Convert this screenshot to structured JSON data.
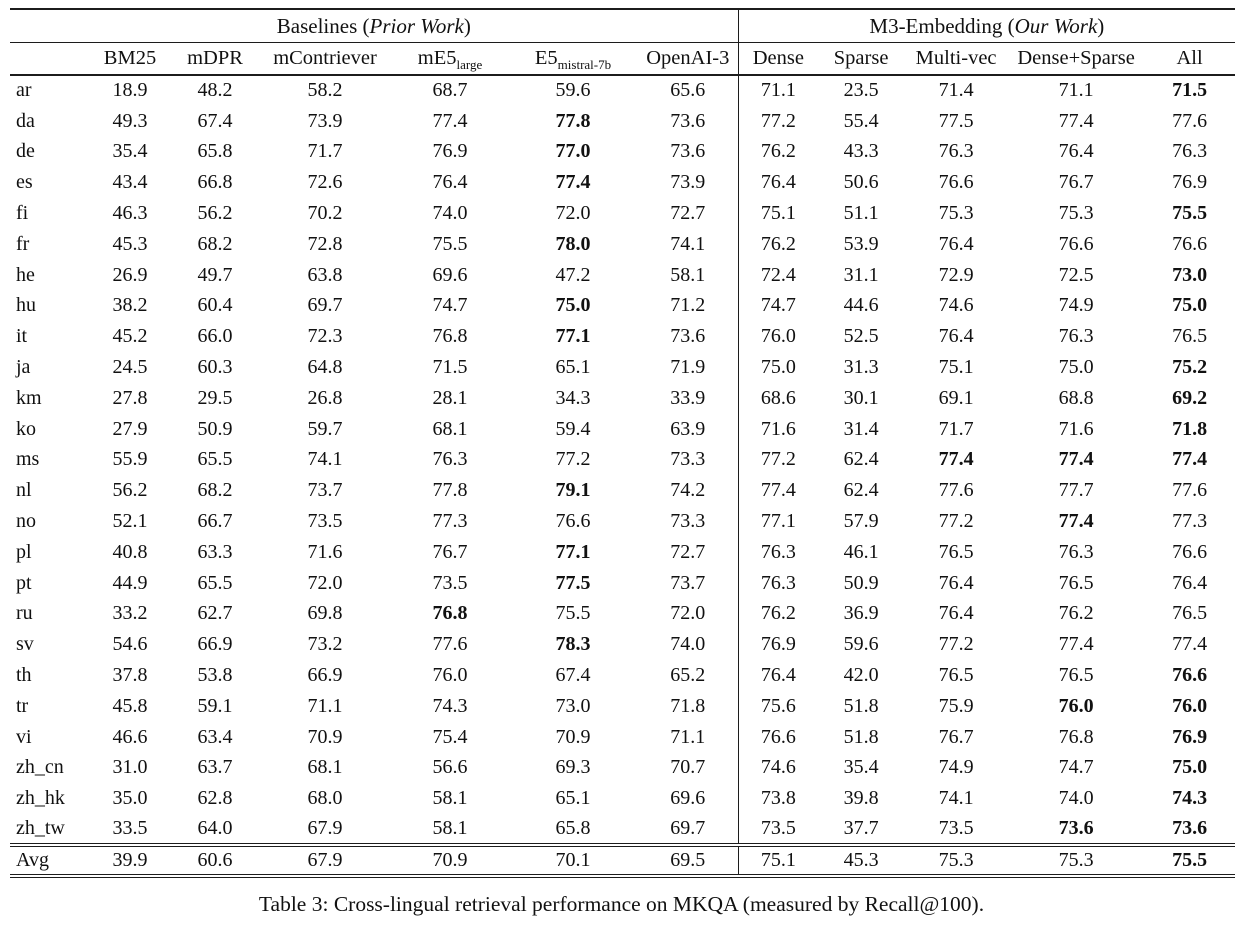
{
  "caption": "Table 3: Cross-lingual retrieval performance on MKQA (measured by Recall@100).",
  "table": {
    "groups": [
      {
        "title_prefix": "Baselines (",
        "title_italic": "Prior Work",
        "title_suffix": ")"
      },
      {
        "title_prefix": "M3-Embedding (",
        "title_italic": "Our Work",
        "title_suffix": ")"
      }
    ],
    "columns": [
      {
        "label": "BM25"
      },
      {
        "label": "mDPR"
      },
      {
        "label": "mContriever"
      },
      {
        "label": "mE5",
        "sub": "large"
      },
      {
        "label": "E5",
        "sub": "mistral-7b"
      },
      {
        "label": "OpenAI-3"
      },
      {
        "label": "Dense"
      },
      {
        "label": "Sparse"
      },
      {
        "label": "Multi-vec"
      },
      {
        "label": "Dense+Sparse"
      },
      {
        "label": "All"
      }
    ],
    "rows": [
      {
        "lang": "ar",
        "values": [
          "18.9",
          "48.2",
          "58.2",
          "68.7",
          "59.6",
          "65.6",
          "71.1",
          "23.5",
          "71.4",
          "71.1",
          "71.5"
        ],
        "bold": [
          10
        ]
      },
      {
        "lang": "da",
        "values": [
          "49.3",
          "67.4",
          "73.9",
          "77.4",
          "77.8",
          "73.6",
          "77.2",
          "55.4",
          "77.5",
          "77.4",
          "77.6"
        ],
        "bold": [
          4
        ]
      },
      {
        "lang": "de",
        "values": [
          "35.4",
          "65.8",
          "71.7",
          "76.9",
          "77.0",
          "73.6",
          "76.2",
          "43.3",
          "76.3",
          "76.4",
          "76.3"
        ],
        "bold": [
          4
        ]
      },
      {
        "lang": "es",
        "values": [
          "43.4",
          "66.8",
          "72.6",
          "76.4",
          "77.4",
          "73.9",
          "76.4",
          "50.6",
          "76.6",
          "76.7",
          "76.9"
        ],
        "bold": [
          4
        ]
      },
      {
        "lang": "fi",
        "values": [
          "46.3",
          "56.2",
          "70.2",
          "74.0",
          "72.0",
          "72.7",
          "75.1",
          "51.1",
          "75.3",
          "75.3",
          "75.5"
        ],
        "bold": [
          10
        ]
      },
      {
        "lang": "fr",
        "values": [
          "45.3",
          "68.2",
          "72.8",
          "75.5",
          "78.0",
          "74.1",
          "76.2",
          "53.9",
          "76.4",
          "76.6",
          "76.6"
        ],
        "bold": [
          4
        ]
      },
      {
        "lang": "he",
        "values": [
          "26.9",
          "49.7",
          "63.8",
          "69.6",
          "47.2",
          "58.1",
          "72.4",
          "31.1",
          "72.9",
          "72.5",
          "73.0"
        ],
        "bold": [
          10
        ]
      },
      {
        "lang": "hu",
        "values": [
          "38.2",
          "60.4",
          "69.7",
          "74.7",
          "75.0",
          "71.2",
          "74.7",
          "44.6",
          "74.6",
          "74.9",
          "75.0"
        ],
        "bold": [
          4,
          10
        ]
      },
      {
        "lang": "it",
        "values": [
          "45.2",
          "66.0",
          "72.3",
          "76.8",
          "77.1",
          "73.6",
          "76.0",
          "52.5",
          "76.4",
          "76.3",
          "76.5"
        ],
        "bold": [
          4
        ]
      },
      {
        "lang": "ja",
        "values": [
          "24.5",
          "60.3",
          "64.8",
          "71.5",
          "65.1",
          "71.9",
          "75.0",
          "31.3",
          "75.1",
          "75.0",
          "75.2"
        ],
        "bold": [
          10
        ]
      },
      {
        "lang": "km",
        "values": [
          "27.8",
          "29.5",
          "26.8",
          "28.1",
          "34.3",
          "33.9",
          "68.6",
          "30.1",
          "69.1",
          "68.8",
          "69.2"
        ],
        "bold": [
          10
        ]
      },
      {
        "lang": "ko",
        "values": [
          "27.9",
          "50.9",
          "59.7",
          "68.1",
          "59.4",
          "63.9",
          "71.6",
          "31.4",
          "71.7",
          "71.6",
          "71.8"
        ],
        "bold": [
          10
        ]
      },
      {
        "lang": "ms",
        "values": [
          "55.9",
          "65.5",
          "74.1",
          "76.3",
          "77.2",
          "73.3",
          "77.2",
          "62.4",
          "77.4",
          "77.4",
          "77.4"
        ],
        "bold": [
          8,
          9,
          10
        ]
      },
      {
        "lang": "nl",
        "values": [
          "56.2",
          "68.2",
          "73.7",
          "77.8",
          "79.1",
          "74.2",
          "77.4",
          "62.4",
          "77.6",
          "77.7",
          "77.6"
        ],
        "bold": [
          4
        ]
      },
      {
        "lang": "no",
        "values": [
          "52.1",
          "66.7",
          "73.5",
          "77.3",
          "76.6",
          "73.3",
          "77.1",
          "57.9",
          "77.2",
          "77.4",
          "77.3"
        ],
        "bold": [
          9
        ]
      },
      {
        "lang": "pl",
        "values": [
          "40.8",
          "63.3",
          "71.6",
          "76.7",
          "77.1",
          "72.7",
          "76.3",
          "46.1",
          "76.5",
          "76.3",
          "76.6"
        ],
        "bold": [
          4
        ]
      },
      {
        "lang": "pt",
        "values": [
          "44.9",
          "65.5",
          "72.0",
          "73.5",
          "77.5",
          "73.7",
          "76.3",
          "50.9",
          "76.4",
          "76.5",
          "76.4"
        ],
        "bold": [
          4
        ]
      },
      {
        "lang": "ru",
        "values": [
          "33.2",
          "62.7",
          "69.8",
          "76.8",
          "75.5",
          "72.0",
          "76.2",
          "36.9",
          "76.4",
          "76.2",
          "76.5"
        ],
        "bold": [
          3
        ]
      },
      {
        "lang": "sv",
        "values": [
          "54.6",
          "66.9",
          "73.2",
          "77.6",
          "78.3",
          "74.0",
          "76.9",
          "59.6",
          "77.2",
          "77.4",
          "77.4"
        ],
        "bold": [
          4
        ]
      },
      {
        "lang": "th",
        "values": [
          "37.8",
          "53.8",
          "66.9",
          "76.0",
          "67.4",
          "65.2",
          "76.4",
          "42.0",
          "76.5",
          "76.5",
          "76.6"
        ],
        "bold": [
          10
        ]
      },
      {
        "lang": "tr",
        "values": [
          "45.8",
          "59.1",
          "71.1",
          "74.3",
          "73.0",
          "71.8",
          "75.6",
          "51.8",
          "75.9",
          "76.0",
          "76.0"
        ],
        "bold": [
          9,
          10
        ]
      },
      {
        "lang": "vi",
        "values": [
          "46.6",
          "63.4",
          "70.9",
          "75.4",
          "70.9",
          "71.1",
          "76.6",
          "51.8",
          "76.7",
          "76.8",
          "76.9"
        ],
        "bold": [
          10
        ]
      },
      {
        "lang": "zh_cn",
        "values": [
          "31.0",
          "63.7",
          "68.1",
          "56.6",
          "69.3",
          "70.7",
          "74.6",
          "35.4",
          "74.9",
          "74.7",
          "75.0"
        ],
        "bold": [
          10
        ]
      },
      {
        "lang": "zh_hk",
        "values": [
          "35.0",
          "62.8",
          "68.0",
          "58.1",
          "65.1",
          "69.6",
          "73.8",
          "39.8",
          "74.1",
          "74.0",
          "74.3"
        ],
        "bold": [
          10
        ]
      },
      {
        "lang": "zh_tw",
        "values": [
          "33.5",
          "64.0",
          "67.9",
          "58.1",
          "65.8",
          "69.7",
          "73.5",
          "37.7",
          "73.5",
          "73.6",
          "73.6"
        ],
        "bold": [
          9,
          10
        ]
      }
    ],
    "avg_row": {
      "lang": "Avg",
      "values": [
        "39.9",
        "60.6",
        "67.9",
        "70.9",
        "70.1",
        "69.5",
        "75.1",
        "45.3",
        "75.3",
        "75.3",
        "75.5"
      ],
      "bold": [
        10
      ]
    }
  }
}
